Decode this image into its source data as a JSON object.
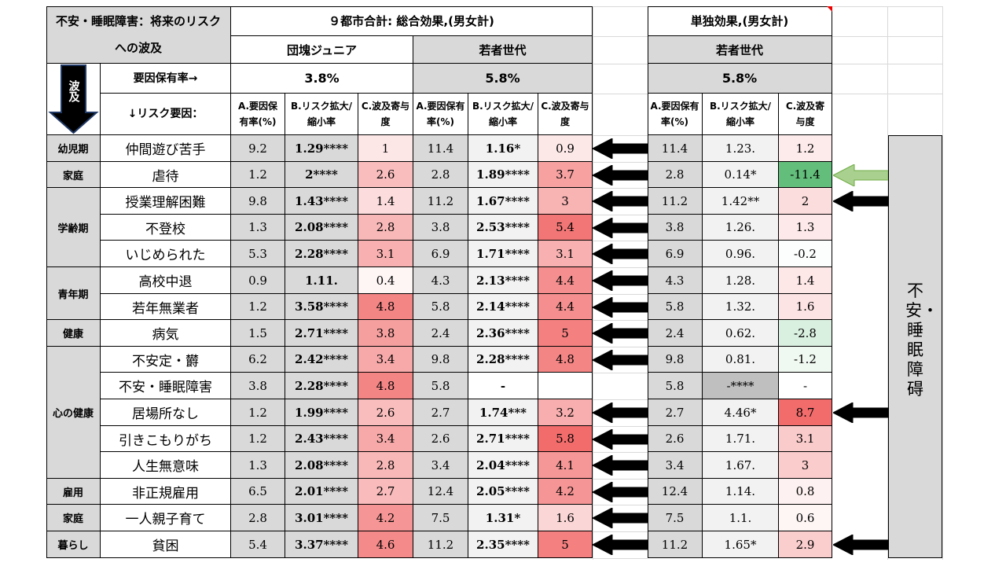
{
  "table": {
    "title": "不安・睡眠障害：将来のリスクへの波及",
    "total_header": "９都市合計: 総合効果,(男女計)",
    "single_header": "単独効果,(男女計)",
    "gen_dankai": "団塊ジュニア",
    "gen_wakamono": "若者世代",
    "gen_wakamono2": "若者世代",
    "hakyu_label": "波及",
    "factor_rate_label": "要因保有率→",
    "risk_factor_label": "↓リスク要因：",
    "rate_dankai": "3.8%",
    "rate_wakamono": "5.8%",
    "rate_single": "5.8%",
    "col_a": "A.要因保有率(%)",
    "col_b": "B.リスク拡大/縮小率",
    "col_c": "C.波及寄与度",
    "side_label": "不安・睡眠障碍"
  },
  "categories": [
    "幼児期",
    "家庭",
    "学齢期",
    "青年期",
    "健康",
    "心の健康",
    "雇用",
    "家庭",
    "暮らし"
  ],
  "rows": [
    {
      "factor": "仲間遊び苦手",
      "d": [
        "9.2",
        "1.29****",
        "1"
      ],
      "w": [
        "11.4",
        "1.16*",
        "0.9"
      ],
      "s": [
        "11.4",
        "1.23.",
        "1.2"
      ]
    },
    {
      "factor": "虐待",
      "d": [
        "1.2",
        "2****",
        "2.6"
      ],
      "w": [
        "2.8",
        "1.89****",
        "3.7"
      ],
      "s": [
        "2.8",
        "0.14*",
        "-11.4"
      ]
    },
    {
      "factor": "授業理解困難",
      "d": [
        "9.8",
        "1.43****",
        "1.4"
      ],
      "w": [
        "11.2",
        "1.67****",
        "3"
      ],
      "s": [
        "11.2",
        "1.42**",
        "2"
      ]
    },
    {
      "factor": "不登校",
      "d": [
        "1.3",
        "2.08****",
        "2.8"
      ],
      "w": [
        "3.8",
        "2.53****",
        "5.4"
      ],
      "s": [
        "3.8",
        "1.26.",
        "1.3"
      ]
    },
    {
      "factor": "いじめられた",
      "d": [
        "5.3",
        "2.28****",
        "3.1"
      ],
      "w": [
        "6.9",
        "1.71****",
        "3.1"
      ],
      "s": [
        "6.9",
        "0.96.",
        "-0.2"
      ]
    },
    {
      "factor": "高校中退",
      "d": [
        "0.9",
        "1.11.",
        "0.4"
      ],
      "w": [
        "4.3",
        "2.13****",
        "4.4"
      ],
      "s": [
        "4.3",
        "1.28.",
        "1.4"
      ]
    },
    {
      "factor": "若年無業者",
      "d": [
        "1.2",
        "3.58****",
        "4.8"
      ],
      "w": [
        "5.8",
        "2.14****",
        "4.4"
      ],
      "s": [
        "5.8",
        "1.32.",
        "1.6"
      ]
    },
    {
      "factor": "病気",
      "d": [
        "1.5",
        "2.71****",
        "3.8"
      ],
      "w": [
        "2.4",
        "2.36****",
        "5"
      ],
      "s": [
        "2.4",
        "0.62.",
        "-2.8"
      ]
    },
    {
      "factor": "不安定・欝",
      "d": [
        "6.2",
        "2.42****",
        "3.4"
      ],
      "w": [
        "9.8",
        "2.28****",
        "4.8"
      ],
      "s": [
        "9.8",
        "0.81.",
        "-1.2"
      ]
    },
    {
      "factor": "不安・睡眠障害",
      "d": [
        "3.8",
        "2.28****",
        "4.8"
      ],
      "w": [
        "5.8",
        "-",
        ""
      ],
      "s": [
        "5.8",
        "-****",
        "-"
      ]
    },
    {
      "factor": "居場所なし",
      "d": [
        "1.2",
        "1.99****",
        "2.6"
      ],
      "w": [
        "2.7",
        "1.74***",
        "3.2"
      ],
      "s": [
        "2.7",
        "4.46*",
        "8.7"
      ]
    },
    {
      "factor": "引きこもりがち",
      "d": [
        "1.2",
        "2.43****",
        "3.4"
      ],
      "w": [
        "2.6",
        "2.71****",
        "5.8"
      ],
      "s": [
        "2.6",
        "1.71.",
        "3.1"
      ]
    },
    {
      "factor": "人生無意味",
      "d": [
        "1.3",
        "2.08****",
        "2.8"
      ],
      "w": [
        "3.4",
        "2.04****",
        "4.1"
      ],
      "s": [
        "3.4",
        "1.67.",
        "3"
      ]
    },
    {
      "factor": "非正規雇用",
      "d": [
        "6.5",
        "2.01****",
        "2.7"
      ],
      "w": [
        "12.4",
        "2.05****",
        "4.2"
      ],
      "s": [
        "12.4",
        "1.14.",
        "0.8"
      ]
    },
    {
      "factor": "一人親子育て",
      "d": [
        "2.8",
        "3.01****",
        "4.2"
      ],
      "w": [
        "7.5",
        "1.31*",
        "1.6"
      ],
      "s": [
        "7.5",
        "1.1.",
        "0.6"
      ]
    },
    {
      "factor": "貧困",
      "d": [
        "5.4",
        "3.37****",
        "4.6"
      ],
      "w": [
        "11.2",
        "2.35****",
        "5"
      ],
      "s": [
        "11.2",
        "1.65*",
        "2.9"
      ]
    }
  ],
  "colors": {
    "header_grey": "#d9d9d9",
    "cell_grey": "#d9d9d9",
    "light_grey": "#f2f2f2",
    "red_strong": "#f26c6c",
    "green_strong": "#63be7b",
    "arrow_black": "#000000",
    "arrow_green": "#a9d08e"
  }
}
